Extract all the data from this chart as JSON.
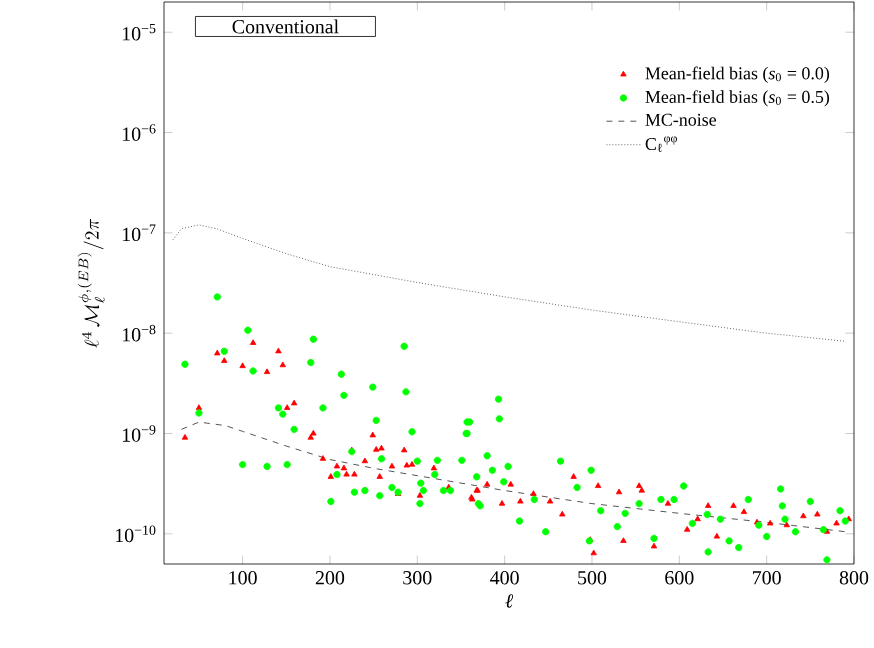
{
  "chart_data": {
    "type": "scatter",
    "xlabel": "*ℓ*",
    "ylabel": "\\ell^4\\,\\mathcal{M}_\\ell^{\\phi,(EB)}/2\\pi",
    "annotations": [
      "Conventional"
    ],
    "xlim": [
      10,
      800
    ],
    "xticks": [
      100,
      200,
      300,
      400,
      500,
      600,
      700,
      800
    ],
    "ylim": [
      5e-11,
      2e-05
    ],
    "log": "y",
    "yticks": [
      {
        "value": 1e-10,
        "label": "10$^{−10}$"
      },
      {
        "value": 1e-09,
        "label": "10$^{−9}$"
      },
      {
        "value": 1e-08,
        "label": "10$^{−8}$"
      },
      {
        "value": 1e-07,
        "label": "10$^{−7}$"
      },
      {
        "value": 1e-06,
        "label": "10$^{−6}$"
      },
      {
        "value": 1e-05,
        "label": "10$^{−5}$"
      }
    ],
    "legend": "top right",
    "series": [
      {
        "name": "Mean-field bias (*s*$_{0}$ = 0.0)",
        "marker": "triangle",
        "color": "#ff0000",
        "x": [
          34,
          50,
          71,
          79,
          100,
          112,
          128,
          141,
          146,
          151,
          159,
          178,
          181,
          192,
          201,
          208,
          216,
          219,
          225,
          228,
          240,
          249,
          253,
          259,
          257,
          271,
          278,
          285,
          288,
          294,
          303,
          319,
          336,
          362,
          369,
          363,
          368,
          380,
          397,
          407,
          418,
          433,
          452,
          466,
          479,
          498,
          502,
          507,
          531,
          536,
          554,
          557,
          571,
          587,
          609,
          621,
          633,
          643,
          662,
          674,
          689,
          704,
          723,
          742,
          758,
          769,
          780,
          794
        ],
        "values": [
          9.1e-10,
          1.8e-09,
          6.3e-09,
          5.3e-09,
          4.7e-09,
          8e-09,
          4.1e-09,
          6.6e-09,
          4.8e-09,
          1.8e-09,
          2e-09,
          9.1e-10,
          1e-09,
          5.6e-10,
          3.7e-10,
          4.7e-10,
          4.5e-10,
          3.9e-10,
          6.8e-10,
          3.9e-10,
          5.3e-10,
          9.6e-10,
          6.9e-10,
          7.1e-10,
          3.7e-10,
          4.7e-10,
          2.5e-10,
          6.8e-10,
          4.8e-10,
          4.9e-10,
          2.4e-10,
          4.5e-10,
          2.9e-10,
          2.3e-10,
          2.7e-10,
          2.2e-10,
          2.7e-10,
          3.1e-10,
          2e-10,
          3.1e-10,
          2.1e-10,
          2.5e-10,
          2.1e-10,
          1.56e-10,
          3.7e-10,
          8.7e-11,
          6.4e-11,
          3e-10,
          2.6e-10,
          8.5e-11,
          3e-10,
          2.7e-10,
          7.5e-11,
          2e-10,
          1.1e-10,
          1.4e-10,
          1.9e-10,
          9.4e-11,
          1.9e-10,
          1.65e-10,
          1.3e-10,
          1.27e-10,
          1.22e-10,
          1.5e-10,
          1.56e-10,
          1.05e-10,
          1.27e-10,
          1.4e-10
        ]
      },
      {
        "name": "Mean-field bias (*s*$_{0}$ = 0.5)",
        "marker": "circle",
        "color": "#00ff00",
        "x": [
          34,
          71,
          50,
          106,
          79,
          112,
          100,
          128,
          141,
          146,
          151,
          159,
          178,
          181,
          192,
          201,
          208,
          213,
          216,
          225,
          228,
          240,
          249,
          253,
          257,
          259,
          285,
          287,
          294,
          271,
          278,
          300,
          304,
          303,
          307,
          320,
          323,
          330,
          338,
          351,
          357,
          356,
          370,
          368,
          360,
          357,
          393,
          394,
          380,
          386,
          404,
          399,
          372,
          417,
          434,
          447,
          464,
          483,
          497,
          499,
          510,
          529,
          538,
          554,
          571,
          579,
          594,
          605,
          615,
          632,
          633,
          647,
          657,
          668,
          679,
          691,
          700,
          716,
          718,
          721,
          733,
          750,
          765,
          769,
          784,
          790
        ],
        "values": [
          4.9e-09,
          2.3e-08,
          1.6e-09,
          1.07e-08,
          6.6e-09,
          4.2e-09,
          4.9e-10,
          4.7e-10,
          1.8e-09,
          1.56e-09,
          4.9e-10,
          1.1e-09,
          5.1e-09,
          8.7e-09,
          1.8e-09,
          2.1e-10,
          3.9e-10,
          3.9e-09,
          2.4e-09,
          6.6e-10,
          2.6e-10,
          2.7e-10,
          2.9e-09,
          1.35e-09,
          2.4e-10,
          5.6e-10,
          7.4e-09,
          2.6e-09,
          1.04e-09,
          2.9e-10,
          2.6e-10,
          5.3e-10,
          3.2e-10,
          2e-10,
          2.7e-10,
          3.9e-10,
          5.4e-10,
          2.7e-10,
          2.7e-10,
          5.4e-10,
          1.3e-09,
          1e-09,
          2e-10,
          3.7e-10,
          1.3e-09,
          1e-09,
          2.2e-09,
          1.4e-09,
          6e-10,
          4.3e-10,
          4.7e-10,
          3.3e-10,
          1.9e-10,
          1.34e-10,
          2.2e-10,
          1.05e-10,
          5.3e-10,
          2.9e-10,
          8.5e-11,
          4.3e-10,
          1.7e-10,
          1.18e-10,
          1.6e-10,
          2e-10,
          9e-11,
          2.2e-10,
          2.2e-10,
          3e-10,
          1.27e-10,
          1.56e-10,
          6.6e-11,
          1.4e-10,
          8.5e-11,
          7.3e-11,
          2.2e-10,
          1.22e-10,
          9.4e-11,
          2.8e-10,
          1.9e-10,
          1.4e-10,
          1.05e-10,
          2.1e-10,
          1.1e-10,
          5.5e-11,
          1.7e-10,
          1.34e-10
        ]
      },
      {
        "name": "MC-noise",
        "type": "line",
        "line_style": "dashed",
        "color": "#555555",
        "x": [
          30,
          50,
          80,
          100,
          150,
          200,
          250,
          300,
          400,
          500,
          600,
          700,
          790
        ],
        "values": [
          1.1e-09,
          1.3e-09,
          1.2e-09,
          1.05e-09,
          7.5e-10,
          5.5e-10,
          4.5e-10,
          3.8e-10,
          2.7e-10,
          2e-10,
          1.6e-10,
          1.3e-10,
          1.05e-10
        ]
      },
      {
        "name": "C$_{ℓ}$$^{φφ}$",
        "type": "line",
        "line_style": "dotted",
        "color": "#666666",
        "x": [
          20,
          30,
          50,
          70,
          100,
          150,
          200,
          300,
          400,
          500,
          600,
          700,
          790
        ],
        "values": [
          8.5e-08,
          1.1e-07,
          1.2e-07,
          1.1e-07,
          8.8e-08,
          6.2e-08,
          4.6e-08,
          3.2e-08,
          2.3e-08,
          1.7e-08,
          1.3e-08,
          1e-08,
          8.3e-09
        ]
      }
    ]
  }
}
